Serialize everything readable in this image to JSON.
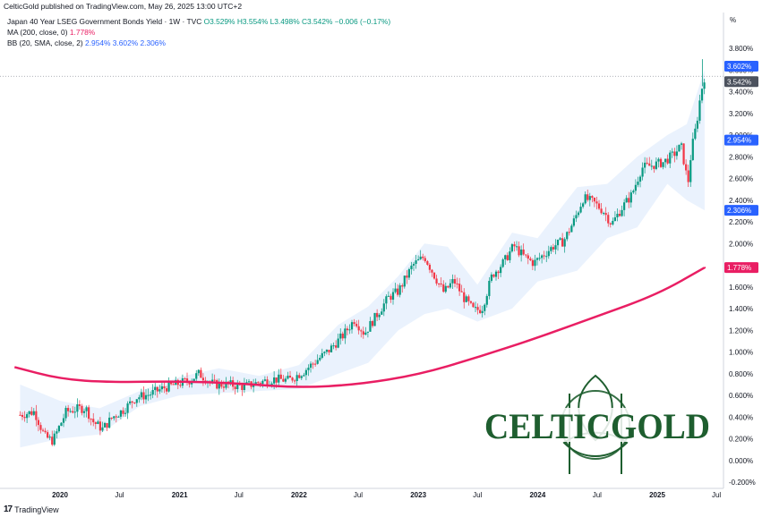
{
  "header": {
    "published_line": "CelticGold published on TradingView.com, May 26, 2025 13:00 UTC+2",
    "symbol_line": "Japan 40 Year LSEG Government Bonds Yield · 1W · TVC",
    "ohlc": "O3.529% H3.554% L3.498% C3.542% −0.006 (−0.17%)",
    "ma_label": "MA (200, close, 0)",
    "ma_value": "1.778%",
    "bb_label": "BB (20, SMA, close, 2)",
    "bb_values": "2.954% 3.602% 2.306%",
    "unit": "%"
  },
  "footer": {
    "logo_glyph": "17",
    "brand": "TradingView"
  },
  "watermark": {
    "text": "CELTICGOLD"
  },
  "colors": {
    "up": "#089981",
    "down": "#f23645",
    "ma": "#e91e63",
    "bb_fill": "#d9e8fb",
    "badge_blue": "#2962ff",
    "badge_grey": "#4c525e",
    "watermark_green": "#1e5e2f"
  },
  "chart_data": {
    "type": "candlestick",
    "title": "Japan 40 Year LSEG Government Bonds Yield · 1W · TVC",
    "ylabel": "%",
    "ylim": [
      -0.25,
      4.0
    ],
    "y_ticks": [
      "3.800%",
      "3.600%",
      "3.400%",
      "3.200%",
      "3.000%",
      "2.800%",
      "2.600%",
      "2.400%",
      "2.200%",
      "2.000%",
      "1.800%",
      "1.600%",
      "1.400%",
      "1.200%",
      "1.000%",
      "0.800%",
      "0.600%",
      "0.400%",
      "0.200%",
      "0.000%",
      "-0.200%"
    ],
    "x_ticks": [
      "2020",
      "Jul",
      "2021",
      "Jul",
      "2022",
      "Jul",
      "2023",
      "Jul",
      "2024",
      "Jul",
      "2025",
      "Jul"
    ],
    "x_tick_dates": [
      "2020-01-01",
      "2020-07-01",
      "2021-01-01",
      "2021-07-01",
      "2022-01-01",
      "2022-07-01",
      "2023-01-01",
      "2023-07-01",
      "2024-01-01",
      "2024-07-01",
      "2025-01-01",
      "2025-07-01"
    ],
    "price_badges": [
      {
        "label": "3.602%",
        "value": 3.602,
        "kind": "bb_upper"
      },
      {
        "label": "3.542%",
        "value": 3.542,
        "kind": "last"
      },
      {
        "label": "2.954%",
        "value": 2.954,
        "kind": "bb_basis"
      },
      {
        "label": "2.306%",
        "value": 2.306,
        "kind": "bb_lower"
      },
      {
        "label": "1.778%",
        "value": 1.778,
        "kind": "ma"
      }
    ],
    "close_path": [
      [
        "2019-09-01",
        0.42
      ],
      [
        "2019-10-15",
        0.45
      ],
      [
        "2019-11-15",
        0.22
      ],
      [
        "2019-12-10",
        0.18
      ],
      [
        "2020-01-20",
        0.45
      ],
      [
        "2020-03-01",
        0.48
      ],
      [
        "2020-03-20",
        0.48
      ],
      [
        "2020-04-10",
        0.36
      ],
      [
        "2020-05-10",
        0.29
      ],
      [
        "2020-06-10",
        0.4
      ],
      [
        "2020-07-15",
        0.47
      ],
      [
        "2020-08-20",
        0.58
      ],
      [
        "2020-10-01",
        0.61
      ],
      [
        "2020-11-15",
        0.67
      ],
      [
        "2020-12-20",
        0.7
      ],
      [
        "2021-02-01",
        0.74
      ],
      [
        "2021-03-01",
        0.8
      ],
      [
        "2021-04-15",
        0.7
      ],
      [
        "2021-06-01",
        0.7
      ],
      [
        "2021-07-15",
        0.68
      ],
      [
        "2021-09-01",
        0.72
      ],
      [
        "2021-10-15",
        0.75
      ],
      [
        "2021-12-01",
        0.74
      ],
      [
        "2022-01-15",
        0.82
      ],
      [
        "2022-02-15",
        0.9
      ],
      [
        "2022-04-01",
        1.01
      ],
      [
        "2022-05-15",
        1.15
      ],
      [
        "2022-06-20",
        1.3
      ],
      [
        "2022-07-20",
        1.17
      ],
      [
        "2022-08-20",
        1.31
      ],
      [
        "2022-10-01",
        1.5
      ],
      [
        "2022-11-01",
        1.56
      ],
      [
        "2022-12-15",
        1.8
      ],
      [
        "2023-01-20",
        1.88
      ],
      [
        "2023-02-20",
        1.7
      ],
      [
        "2023-03-20",
        1.55
      ],
      [
        "2023-04-20",
        1.66
      ],
      [
        "2023-05-20",
        1.5
      ],
      [
        "2023-06-20",
        1.38
      ],
      [
        "2023-07-15",
        1.4
      ],
      [
        "2023-08-15",
        1.71
      ],
      [
        "2023-09-20",
        1.83
      ],
      [
        "2023-10-20",
        1.98
      ],
      [
        "2023-11-20",
        1.88
      ],
      [
        "2023-12-20",
        1.82
      ],
      [
        "2024-01-20",
        1.9
      ],
      [
        "2024-02-20",
        1.98
      ],
      [
        "2024-03-20",
        2.02
      ],
      [
        "2024-04-20",
        2.2
      ],
      [
        "2024-05-20",
        2.42
      ],
      [
        "2024-06-20",
        2.38
      ],
      [
        "2024-07-20",
        2.3
      ],
      [
        "2024-08-15",
        2.18
      ],
      [
        "2024-09-15",
        2.33
      ],
      [
        "2024-10-15",
        2.45
      ],
      [
        "2024-11-15",
        2.7
      ],
      [
        "2024-12-15",
        2.72
      ],
      [
        "2025-01-20",
        2.75
      ],
      [
        "2025-02-20",
        2.82
      ],
      [
        "2025-03-15",
        2.9
      ],
      [
        "2025-04-05",
        2.55
      ],
      [
        "2025-04-15",
        2.85
      ],
      [
        "2025-05-01",
        3.1
      ],
      [
        "2025-05-15",
        3.4
      ],
      [
        "2025-05-26",
        3.542
      ]
    ],
    "ma_200": [
      [
        "2019-08-15",
        0.86
      ],
      [
        "2020-01-01",
        0.75
      ],
      [
        "2020-06-01",
        0.72
      ],
      [
        "2021-01-01",
        0.73
      ],
      [
        "2021-07-01",
        0.71
      ],
      [
        "2022-01-01",
        0.67
      ],
      [
        "2022-07-01",
        0.7
      ],
      [
        "2023-01-01",
        0.79
      ],
      [
        "2023-07-01",
        0.95
      ],
      [
        "2024-01-01",
        1.13
      ],
      [
        "2024-07-01",
        1.33
      ],
      [
        "2025-01-01",
        1.53
      ],
      [
        "2025-05-26",
        1.778
      ]
    ],
    "bb_upper": [
      [
        "2019-09-01",
        0.7
      ],
      [
        "2020-01-01",
        0.55
      ],
      [
        "2020-05-01",
        0.48
      ],
      [
        "2020-09-01",
        0.64
      ],
      [
        "2021-01-01",
        0.77
      ],
      [
        "2021-05-01",
        0.85
      ],
      [
        "2021-09-01",
        0.78
      ],
      [
        "2022-01-01",
        0.88
      ],
      [
        "2022-05-01",
        1.25
      ],
      [
        "2022-08-01",
        1.42
      ],
      [
        "2022-11-01",
        1.7
      ],
      [
        "2023-01-20",
        2.0
      ],
      [
        "2023-04-01",
        1.97
      ],
      [
        "2023-07-01",
        1.62
      ],
      [
        "2023-10-15",
        2.1
      ],
      [
        "2024-01-01",
        2.05
      ],
      [
        "2024-05-01",
        2.52
      ],
      [
        "2024-08-01",
        2.55
      ],
      [
        "2024-11-01",
        2.8
      ],
      [
        "2025-02-01",
        3.0
      ],
      [
        "2025-04-01",
        3.1
      ],
      [
        "2025-05-26",
        3.602
      ]
    ],
    "bb_lower": [
      [
        "2019-09-01",
        0.12
      ],
      [
        "2020-01-01",
        0.2
      ],
      [
        "2020-05-01",
        0.24
      ],
      [
        "2020-09-01",
        0.5
      ],
      [
        "2021-01-01",
        0.6
      ],
      [
        "2021-05-01",
        0.62
      ],
      [
        "2021-09-01",
        0.64
      ],
      [
        "2022-01-01",
        0.66
      ],
      [
        "2022-05-01",
        0.8
      ],
      [
        "2022-08-01",
        0.9
      ],
      [
        "2022-11-01",
        1.2
      ],
      [
        "2023-01-20",
        1.35
      ],
      [
        "2023-04-01",
        1.4
      ],
      [
        "2023-07-01",
        1.28
      ],
      [
        "2023-10-15",
        1.4
      ],
      [
        "2024-01-01",
        1.65
      ],
      [
        "2024-05-01",
        1.75
      ],
      [
        "2024-08-01",
        2.05
      ],
      [
        "2024-11-01",
        2.15
      ],
      [
        "2025-02-01",
        2.55
      ],
      [
        "2025-04-01",
        2.4
      ],
      [
        "2025-05-26",
        2.306
      ]
    ]
  }
}
